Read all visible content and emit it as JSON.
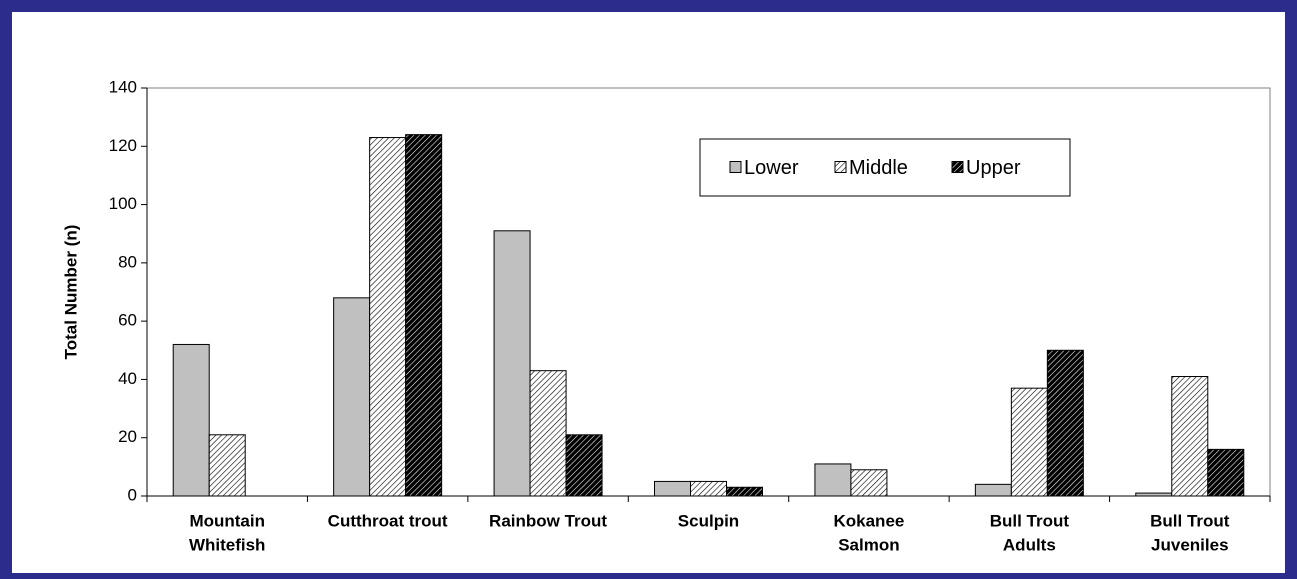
{
  "chart_data": {
    "type": "bar",
    "y_label": "Total Number (n)",
    "categories": [
      [
        "Mountain",
        "Whitefish"
      ],
      [
        "Cutthroat trout"
      ],
      [
        "Rainbow Trout"
      ],
      [
        "Sculpin"
      ],
      [
        "Kokanee",
        "Salmon"
      ],
      [
        "Bull Trout",
        "Adults"
      ],
      [
        "Bull Trout",
        "Juveniles"
      ]
    ],
    "series": [
      {
        "name": "Lower",
        "color": "#c0c0c0",
        "pattern": "solid",
        "values": [
          52,
          68,
          91,
          5,
          11,
          4,
          1
        ]
      },
      {
        "name": "Middle",
        "color": "#ffffff",
        "pattern": "light-hatch",
        "values": [
          21,
          123,
          43,
          5,
          9,
          37,
          41
        ]
      },
      {
        "name": "Upper",
        "color": "#000000",
        "pattern": "dark-hatch",
        "values": [
          0,
          124,
          21,
          3,
          0,
          50,
          16
        ]
      }
    ],
    "ylim": [
      0,
      140
    ],
    "yticks": [
      0,
      20,
      40,
      60,
      80,
      100,
      120,
      140
    ],
    "grid": false,
    "legend": "upper right"
  }
}
